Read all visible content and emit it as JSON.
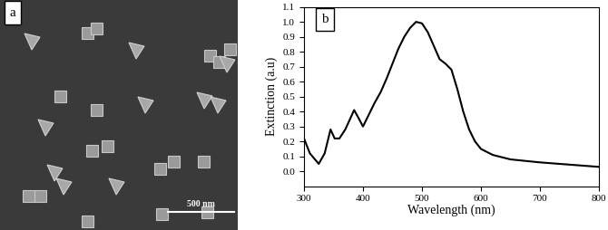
{
  "panel_a": {
    "label": "a",
    "scale_bar": "500 nm"
  },
  "chart_data": {
    "type": "line",
    "panel_label": "b",
    "x_label": "Wavelength (nm)",
    "y_label": "Extinction (a.u)",
    "x": [
      300,
      310,
      325,
      335,
      345,
      352,
      360,
      370,
      385,
      392,
      400,
      410,
      420,
      430,
      440,
      450,
      460,
      470,
      480,
      490,
      500,
      510,
      520,
      530,
      540,
      550,
      560,
      570,
      580,
      590,
      600,
      620,
      650,
      700,
      750,
      800
    ],
    "series": [
      {
        "color": "#000000",
        "values": [
          0.22,
          0.12,
          0.05,
          0.12,
          0.28,
          0.22,
          0.22,
          0.28,
          0.41,
          0.36,
          0.3,
          0.38,
          0.46,
          0.53,
          0.62,
          0.72,
          0.82,
          0.9,
          0.96,
          1.0,
          0.99,
          0.93,
          0.84,
          0.75,
          0.72,
          0.68,
          0.55,
          0.4,
          0.28,
          0.2,
          0.15,
          0.11,
          0.08,
          0.06,
          0.045,
          0.03
        ]
      }
    ],
    "xlim": [
      300,
      800
    ],
    "xticks": [
      300,
      400,
      500,
      600,
      700,
      800
    ],
    "ylim": [
      -0.1,
      1.1
    ],
    "yticks": [
      0.0,
      0.1,
      0.2,
      0.3,
      0.4,
      0.5,
      0.6,
      0.7,
      0.8,
      0.9,
      1.0,
      1.1
    ],
    "grid": false
  }
}
